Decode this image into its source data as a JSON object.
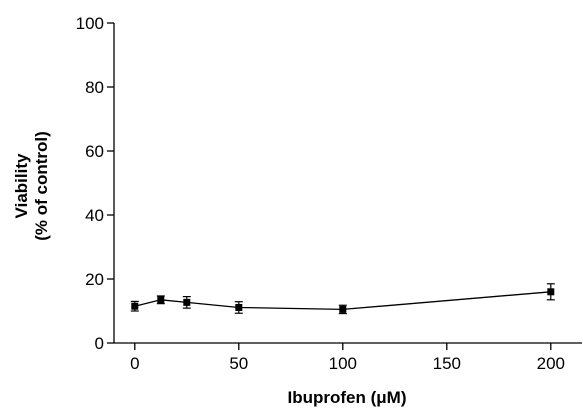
{
  "chart_data": {
    "type": "line",
    "title": "",
    "xlabel": "Ibuprofen (μM)",
    "ylabel_line1": "Viability",
    "ylabel_line2": "(% of control)",
    "xlim": [
      -10,
      215
    ],
    "ylim": [
      0,
      100
    ],
    "x_ticks": [
      0,
      50,
      100,
      150,
      200
    ],
    "y_ticks": [
      0,
      20,
      40,
      60,
      80,
      100
    ],
    "grid": false,
    "legend": "none",
    "colors": {
      "series": "#000000",
      "axes": "#000000"
    },
    "series": [
      {
        "x": [
          0,
          12.5,
          25,
          50,
          100,
          200
        ],
        "y": [
          11.5,
          13.5,
          12.7,
          11.1,
          10.5,
          16.0
        ],
        "error": [
          1.5,
          1.2,
          1.8,
          1.8,
          1.3,
          2.5
        ]
      }
    ]
  }
}
